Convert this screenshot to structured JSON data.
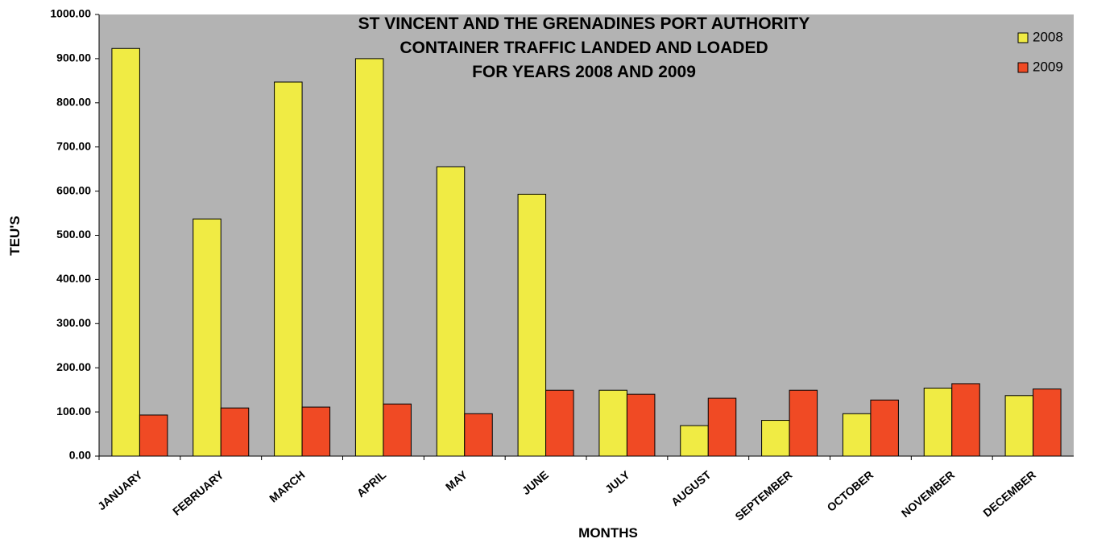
{
  "chart_data": {
    "type": "bar",
    "title": [
      "ST VINCENT AND THE GRENADINES PORT AUTHORITY",
      "CONTAINER TRAFFIC LANDED AND LOADED",
      "FOR YEARS 2008 AND 2009"
    ],
    "x_label": "MONTHS",
    "y_label": "TEU'S",
    "categories": [
      "JANUARY",
      "FEBRUARY",
      "MARCH",
      "APRIL",
      "MAY",
      "JUNE",
      "JULY",
      "AUGUST",
      "SEPTEMBER",
      "OCTOBER",
      "NOVEMBER",
      "DECEMBER"
    ],
    "series": [
      {
        "name": "2008",
        "color": "#f0eb44",
        "values": [
          923,
          537,
          847,
          900,
          655,
          593,
          149,
          69,
          81,
          96,
          154,
          137
        ]
      },
      {
        "name": "2009",
        "color": "#f04a24",
        "values": [
          93,
          109,
          111,
          118,
          96,
          149,
          140,
          131,
          149,
          127,
          164,
          152
        ]
      }
    ],
    "ylim": [
      0,
      1000
    ],
    "yticks": [
      {
        "value": 0,
        "label": "0.00"
      },
      {
        "value": 100,
        "label": "100.00"
      },
      {
        "value": 200,
        "label": "200.00"
      },
      {
        "value": 300,
        "label": "300.00"
      },
      {
        "value": 400,
        "label": "400.00"
      },
      {
        "value": 500,
        "label": "500.00"
      },
      {
        "value": 600,
        "label": "600.00"
      },
      {
        "value": 700,
        "label": "700.00"
      },
      {
        "value": 800,
        "label": "800.00"
      },
      {
        "value": 900,
        "label": "900.00"
      },
      {
        "value": 1000,
        "label": "1000.00"
      }
    ],
    "grid": false,
    "legend": "top-right",
    "background": "#b3b3b3"
  }
}
